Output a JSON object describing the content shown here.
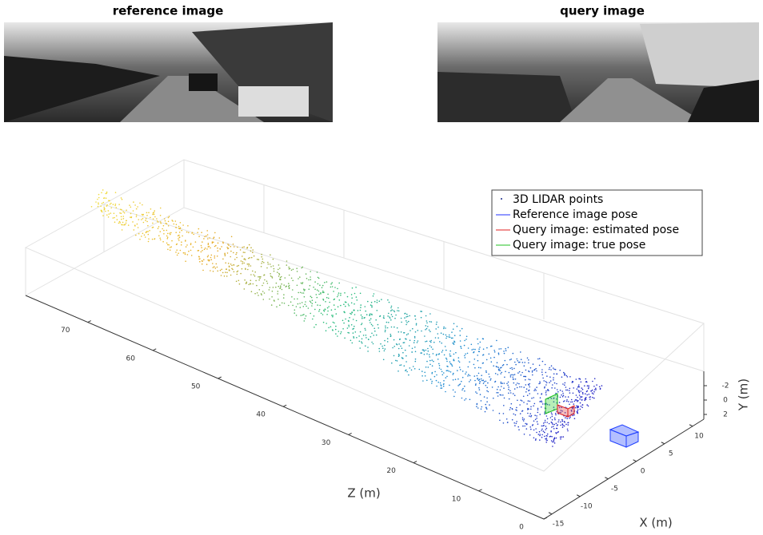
{
  "panels": [
    {
      "title": "reference image"
    },
    {
      "title": "query image"
    }
  ],
  "plot": {
    "z_label": "Z (m)",
    "x_label": "X (m)",
    "y_label": "Y (m)",
    "z_ticks": [
      0,
      10,
      20,
      30,
      40,
      50,
      60,
      70
    ],
    "x_ticks": [
      -15,
      -10,
      -5,
      0,
      5,
      10
    ],
    "y_ticks": [
      -2,
      0,
      2
    ],
    "legend": [
      "3D LIDAR points",
      "Reference image pose",
      "Query image: estimated pose",
      "Query image: true pose"
    ]
  }
}
